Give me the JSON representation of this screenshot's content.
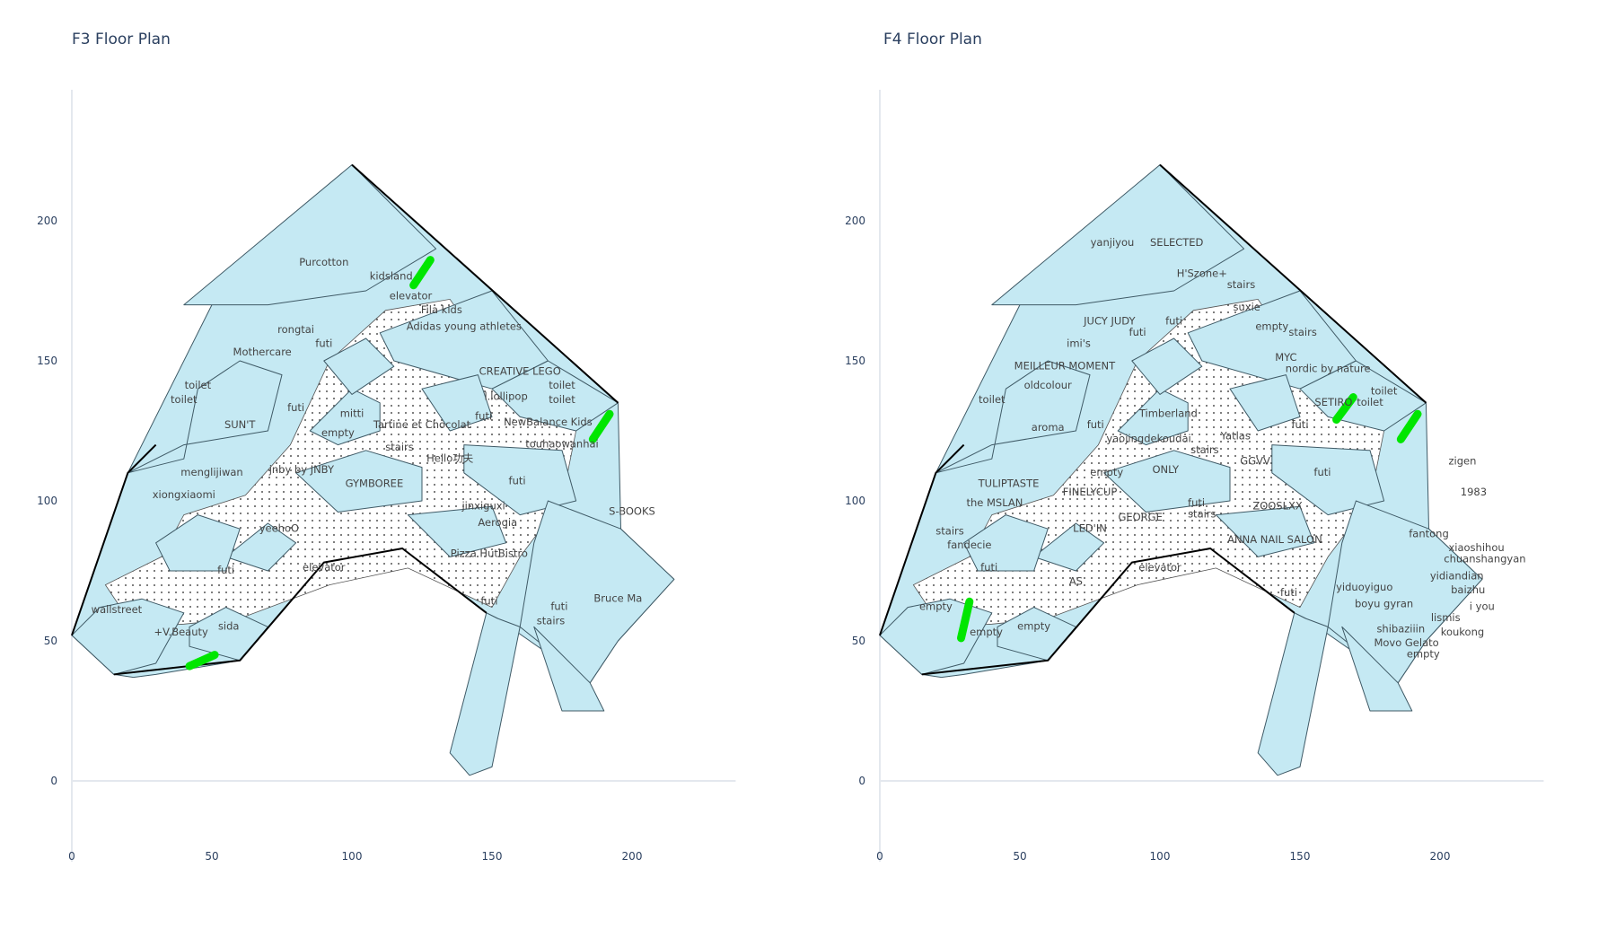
{
  "panels": [
    {
      "title": "F3 Floor Plan",
      "x_ticks": [
        0,
        50,
        100,
        150,
        200
      ],
      "y_ticks": [
        0,
        50,
        100,
        150,
        200
      ],
      "labels": [
        {
          "text": "Purcotton",
          "x": 90,
          "y": 184
        },
        {
          "text": "kidsland",
          "x": 114,
          "y": 179
        },
        {
          "text": "elevator",
          "x": 121,
          "y": 172
        },
        {
          "text": "Fila kids",
          "x": 132,
          "y": 167
        },
        {
          "text": "Adidas young athletes",
          "x": 140,
          "y": 161
        },
        {
          "text": "rongtai",
          "x": 80,
          "y": 160
        },
        {
          "text": "futi",
          "x": 90,
          "y": 155
        },
        {
          "text": "Mothercare",
          "x": 68,
          "y": 152
        },
        {
          "text": "CREATIVE LEGO",
          "x": 160,
          "y": 145
        },
        {
          "text": "toilet",
          "x": 45,
          "y": 140
        },
        {
          "text": "toilet",
          "x": 40,
          "y": 135
        },
        {
          "text": "toilet",
          "x": 175,
          "y": 140
        },
        {
          "text": "toilet",
          "x": 175,
          "y": 135
        },
        {
          "text": "l.lollipop",
          "x": 155,
          "y": 136
        },
        {
          "text": "futi",
          "x": 80,
          "y": 132
        },
        {
          "text": "mitti",
          "x": 100,
          "y": 130
        },
        {
          "text": "futi",
          "x": 147,
          "y": 129
        },
        {
          "text": "NewBalance Kids",
          "x": 170,
          "y": 127
        },
        {
          "text": "SUN'T",
          "x": 60,
          "y": 126
        },
        {
          "text": "Tartine et Chocolat",
          "x": 125,
          "y": 126
        },
        {
          "text": "empty",
          "x": 95,
          "y": 123
        },
        {
          "text": "touhaowanhai",
          "x": 175,
          "y": 119
        },
        {
          "text": "stairs",
          "x": 117,
          "y": 118
        },
        {
          "text": "Hello功夫",
          "x": 135,
          "y": 114
        },
        {
          "text": "menglijiwan",
          "x": 50,
          "y": 109
        },
        {
          "text": "jnby by JNBY",
          "x": 82,
          "y": 110
        },
        {
          "text": "GYMBOREE",
          "x": 108,
          "y": 105
        },
        {
          "text": "futi",
          "x": 159,
          "y": 106
        },
        {
          "text": "xiongxiaomi",
          "x": 40,
          "y": 101
        },
        {
          "text": "jinxiguxi",
          "x": 147,
          "y": 97
        },
        {
          "text": "S-BOOKS",
          "x": 200,
          "y": 95
        },
        {
          "text": "Aerogia",
          "x": 152,
          "y": 91
        },
        {
          "text": "yeehoO",
          "x": 74,
          "y": 89
        },
        {
          "text": "Pizza HutBistro",
          "x": 149,
          "y": 80
        },
        {
          "text": "elevator",
          "x": 90,
          "y": 75
        },
        {
          "text": "futi",
          "x": 55,
          "y": 74
        },
        {
          "text": "futi",
          "x": 149,
          "y": 63
        },
        {
          "text": "futi",
          "x": 174,
          "y": 61
        },
        {
          "text": "Bruce Ma",
          "x": 195,
          "y": 64
        },
        {
          "text": "wallstreet",
          "x": 16,
          "y": 60
        },
        {
          "text": "stairs",
          "x": 171,
          "y": 56
        },
        {
          "text": "sida",
          "x": 56,
          "y": 54
        },
        {
          "text": "+V.Beauty",
          "x": 39,
          "y": 52
        }
      ],
      "markers": [
        {
          "x1": 122,
          "y1": 177,
          "x2": 128,
          "y2": 186
        },
        {
          "x1": 186,
          "y1": 122,
          "x2": 192,
          "y2": 131
        },
        {
          "x1": 42,
          "y1": 41,
          "x2": 51,
          "y2": 45
        }
      ]
    },
    {
      "title": "F4 Floor Plan",
      "x_ticks": [
        0,
        50,
        100,
        150,
        200
      ],
      "y_ticks": [
        0,
        50,
        100,
        150,
        200
      ],
      "labels": [
        {
          "text": "yanjiyou",
          "x": 83,
          "y": 191
        },
        {
          "text": "SELECTED",
          "x": 106,
          "y": 191
        },
        {
          "text": "H'Szone+",
          "x": 115,
          "y": 180
        },
        {
          "text": "stairs",
          "x": 129,
          "y": 176
        },
        {
          "text": "suxie",
          "x": 131,
          "y": 168
        },
        {
          "text": "JUCY JUDY",
          "x": 82,
          "y": 163
        },
        {
          "text": "futi",
          "x": 105,
          "y": 163
        },
        {
          "text": "futi",
          "x": 92,
          "y": 159
        },
        {
          "text": "empty",
          "x": 140,
          "y": 161
        },
        {
          "text": "stairs",
          "x": 151,
          "y": 159
        },
        {
          "text": "imi's",
          "x": 71,
          "y": 155
        },
        {
          "text": "MYC",
          "x": 145,
          "y": 150
        },
        {
          "text": "MEILLEUR MOMENT",
          "x": 66,
          "y": 147
        },
        {
          "text": "nordic by nature",
          "x": 160,
          "y": 146
        },
        {
          "text": "oldcolour",
          "x": 60,
          "y": 140
        },
        {
          "text": "toilet",
          "x": 40,
          "y": 135
        },
        {
          "text": "SETIRO",
          "x": 162,
          "y": 134
        },
        {
          "text": "toilet",
          "x": 180,
          "y": 138
        },
        {
          "text": "toilet",
          "x": 175,
          "y": 134
        },
        {
          "text": "Timberland",
          "x": 103,
          "y": 130
        },
        {
          "text": "aroma",
          "x": 60,
          "y": 125
        },
        {
          "text": "futi",
          "x": 77,
          "y": 126
        },
        {
          "text": "futi",
          "x": 150,
          "y": 126
        },
        {
          "text": "Yatlas",
          "x": 127,
          "y": 122
        },
        {
          "text": "yaojingdekoudai",
          "x": 96,
          "y": 121
        },
        {
          "text": "stairs",
          "x": 116,
          "y": 117
        },
        {
          "text": "GGVV",
          "x": 134,
          "y": 113
        },
        {
          "text": "zigen",
          "x": 208,
          "y": 113
        },
        {
          "text": "empty",
          "x": 81,
          "y": 109
        },
        {
          "text": "ONLY",
          "x": 102,
          "y": 110
        },
        {
          "text": "futi",
          "x": 158,
          "y": 109
        },
        {
          "text": "TULIPTASTE",
          "x": 46,
          "y": 105
        },
        {
          "text": "1983",
          "x": 212,
          "y": 102
        },
        {
          "text": "FINELYCUP",
          "x": 75,
          "y": 102
        },
        {
          "text": "the MSLAN",
          "x": 41,
          "y": 98
        },
        {
          "text": "futi",
          "x": 113,
          "y": 98
        },
        {
          "text": "stairs",
          "x": 115,
          "y": 94
        },
        {
          "text": "ZOOSLXX",
          "x": 142,
          "y": 97
        },
        {
          "text": "GEORGE",
          "x": 93,
          "y": 93
        },
        {
          "text": "stairs",
          "x": 25,
          "y": 88
        },
        {
          "text": "LED'IN",
          "x": 75,
          "y": 89
        },
        {
          "text": "fantong",
          "x": 196,
          "y": 87
        },
        {
          "text": "xiaoshihou",
          "x": 213,
          "y": 82
        },
        {
          "text": "fandecie",
          "x": 32,
          "y": 83
        },
        {
          "text": "ANNA NAIL SALON",
          "x": 141,
          "y": 85
        },
        {
          "text": "chuanshangyan",
          "x": 216,
          "y": 78
        },
        {
          "text": "futi",
          "x": 39,
          "y": 75
        },
        {
          "text": "elevator",
          "x": 100,
          "y": 75
        },
        {
          "text": "AS",
          "x": 70,
          "y": 70
        },
        {
          "text": "yidiandian",
          "x": 206,
          "y": 72
        },
        {
          "text": "yiduoyiguo",
          "x": 173,
          "y": 68
        },
        {
          "text": "baizhu",
          "x": 210,
          "y": 67
        },
        {
          "text": "futi",
          "x": 146,
          "y": 66
        },
        {
          "text": "boyu gyran",
          "x": 180,
          "y": 62
        },
        {
          "text": "i you",
          "x": 215,
          "y": 61
        },
        {
          "text": "empty",
          "x": 20,
          "y": 61
        },
        {
          "text": "lismis",
          "x": 202,
          "y": 57
        },
        {
          "text": "empty",
          "x": 55,
          "y": 54
        },
        {
          "text": "empty",
          "x": 38,
          "y": 52
        },
        {
          "text": "shibaziiin",
          "x": 186,
          "y": 53
        },
        {
          "text": "koukong",
          "x": 208,
          "y": 52
        },
        {
          "text": "Movo Gelato",
          "x": 188,
          "y": 48
        },
        {
          "text": "empty",
          "x": 194,
          "y": 44
        }
      ],
      "markers": [
        {
          "x1": 29,
          "y1": 51,
          "x2": 32,
          "y2": 64
        },
        {
          "x1": 163,
          "y1": 129,
          "x2": 169,
          "y2": 137
        },
        {
          "x1": 186,
          "y1": 122,
          "x2": 192,
          "y2": 131
        }
      ]
    }
  ]
}
